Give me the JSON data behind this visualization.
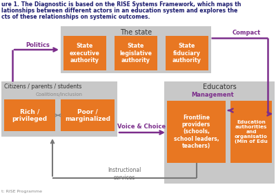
{
  "bg_color": "#ffffff",
  "gray_box_color": "#c8c8c8",
  "orange_color": "#e87722",
  "purple_color": "#7b2d8b",
  "gray_arrow_color": "#777777",
  "text_dark": "#222244",
  "title1": "ure 1. The Diagnostic is based on the RISE Systems Framework, which maps th",
  "title2": "lationships between different actors in an education system and explores the",
  "title3": "cts of these relationships on systemic outcomes.",
  "footer": "t: RISE Programme",
  "state_label": "The state",
  "state_boxes": [
    "State\nexecutive\nauthority",
    "State\nlegislative\nauthority",
    "State\nfiduciary\nauthority"
  ],
  "citizens_label": "Citizens / parents / students",
  "coalitions_label": "Coalitions/Inclusion",
  "rich_label": "Rich /\nprivileged",
  "poor_label": "Poor /\nmarginalized",
  "educators_label": "Educators",
  "management_label": "Management",
  "frontline_label": "Frontline\nproviders\n(schools,\nschool leaders,\nteachers)",
  "edu_auth_label": "Education\nauthorities\nand\norganisatio\n(Min of Edu",
  "politics_label": "Politics",
  "compact_label": "Compact",
  "voice_label": "Voice & Choice",
  "instructional_label": "Instructional\nservices"
}
